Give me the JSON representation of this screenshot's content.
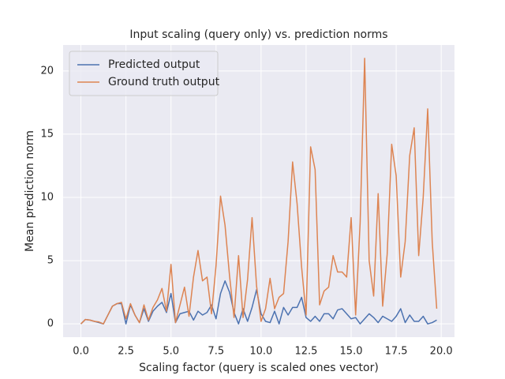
{
  "chart_data": {
    "type": "line",
    "title": "Input scaling (query only) vs. prediction norms",
    "x_label": "Scaling factor (query is scaled ones vector)",
    "y_label": "Mean prediction norm",
    "x": [
      0,
      0.25,
      0.5,
      0.75,
      1,
      1.25,
      1.5,
      1.75,
      2,
      2.25,
      2.5,
      2.75,
      3,
      3.25,
      3.5,
      3.75,
      4,
      4.25,
      4.5,
      4.75,
      5,
      5.25,
      5.5,
      5.75,
      6,
      6.25,
      6.5,
      6.75,
      7,
      7.25,
      7.5,
      7.75,
      8,
      8.25,
      8.5,
      8.75,
      9,
      9.25,
      9.5,
      9.75,
      10,
      10.25,
      10.5,
      10.75,
      11,
      11.25,
      11.5,
      11.75,
      12,
      12.25,
      12.5,
      12.75,
      13,
      13.25,
      13.5,
      13.75,
      14,
      14.25,
      14.5,
      14.75,
      15,
      15.25,
      15.5,
      15.75,
      16,
      16.25,
      16.5,
      16.75,
      17,
      17.25,
      17.5,
      17.75,
      18,
      18.25,
      18.5,
      18.75,
      19,
      19.25,
      19.5,
      19.75
    ],
    "series": [
      {
        "name": "Predicted output",
        "color": "#4c72b0",
        "values": [
          0,
          0.35,
          0.3,
          0.2,
          0.1,
          0,
          0.7,
          1.4,
          1.6,
          1.6,
          0,
          1.5,
          0.7,
          0.1,
          1.2,
          0.2,
          1.0,
          1.4,
          1.7,
          0.9,
          2.4,
          0.1,
          0.8,
          0.9,
          1.0,
          0.3,
          1.0,
          0.7,
          0.9,
          1.5,
          0.4,
          2.4,
          3.4,
          2.5,
          0.9,
          0,
          1.2,
          0.2,
          1.3,
          2.7,
          0.8,
          0.2,
          0.1,
          1.0,
          0,
          1.3,
          0.7,
          1.3,
          1.3,
          2.1,
          0.5,
          0.2,
          0.6,
          0.2,
          0.8,
          0.8,
          0.4,
          1.1,
          1.2,
          0.8,
          0.4,
          0.5,
          0,
          0.4,
          0.8,
          0.5,
          0.1,
          0.6,
          0.4,
          0.2,
          0.6,
          1.2,
          0.1,
          0.7,
          0.2,
          0.2,
          0.6,
          0,
          0.1,
          0.3
        ]
      },
      {
        "name": "Ground truth output",
        "color": "#dd8452",
        "values": [
          0,
          0.35,
          0.3,
          0.2,
          0.15,
          0,
          0.7,
          1.4,
          1.6,
          1.7,
          0.4,
          1.6,
          0.7,
          0.1,
          1.5,
          0.3,
          1.3,
          1.9,
          2.8,
          1.0,
          4.7,
          0.1,
          1.5,
          2.9,
          0.6,
          3.7,
          5.8,
          3.4,
          3.7,
          0.8,
          4.6,
          10.1,
          7.8,
          3.8,
          0.5,
          5.4,
          0.5,
          3.5,
          8.4,
          3.0,
          0.2,
          1.2,
          3.6,
          1.2,
          2.1,
          2.4,
          6.5,
          12.8,
          9.5,
          4.5,
          0.7,
          14.0,
          12.2,
          1.5,
          2.6,
          2.9,
          5.4,
          4.1,
          4.1,
          3.7,
          8.4,
          0.7,
          8.0,
          21.0,
          5.0,
          2.2,
          10.3,
          1.4,
          5.5,
          14.2,
          11.7,
          3.7,
          6.5,
          13.3,
          15.5,
          5.4,
          10.0,
          17.0,
          6.5,
          1.2
        ]
      }
    ],
    "xlim": [
      -0.9875,
      20.7375
    ],
    "ylim": [
      -1.05,
      22.05
    ],
    "xticks": [
      {
        "value": 0,
        "label": "0.0"
      },
      2.5,
      {
        "value": 5,
        "label": "5.0"
      },
      7.5,
      {
        "value": 10,
        "label": "10.0"
      },
      12.5,
      {
        "value": 15,
        "label": "15.0"
      },
      17.5,
      {
        "value": 20,
        "label": "20.0"
      }
    ],
    "yticks": [
      0,
      5,
      10,
      15,
      20
    ],
    "grid": true,
    "legend": "upper left"
  }
}
